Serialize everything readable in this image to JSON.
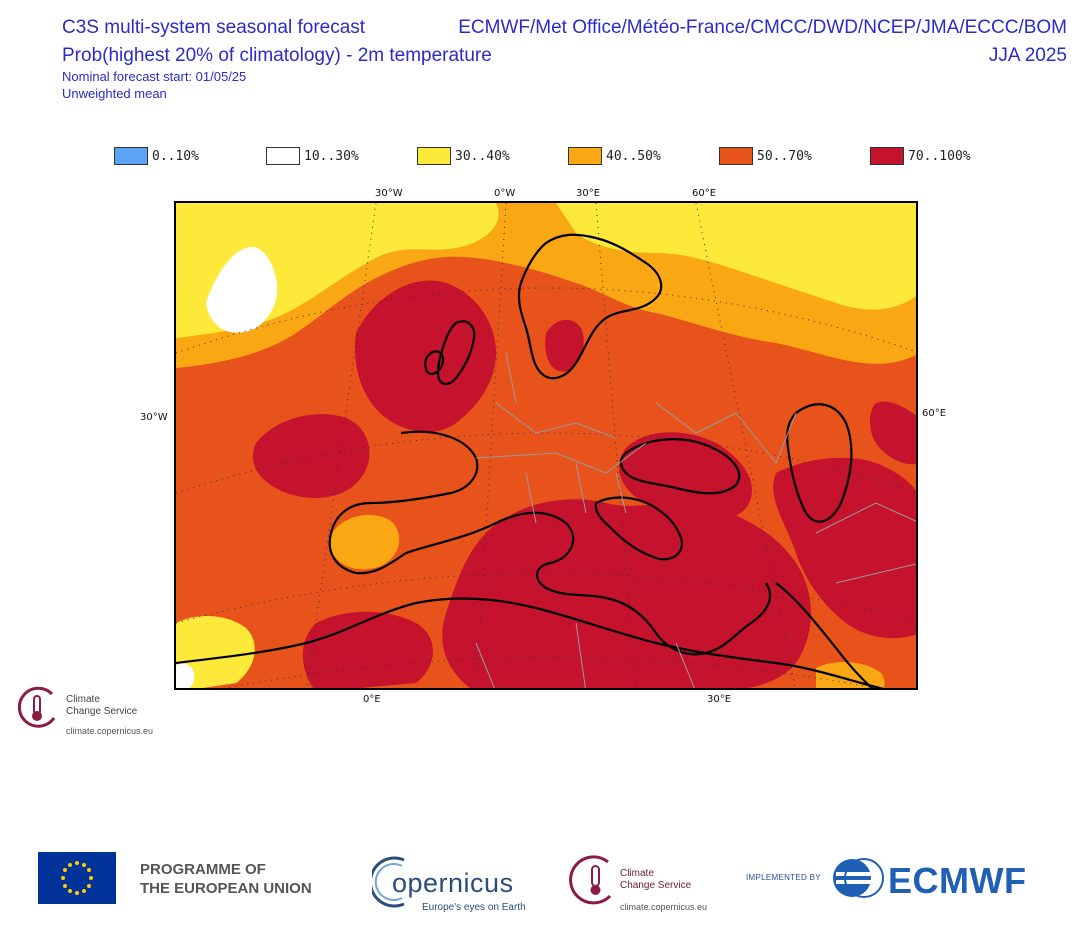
{
  "header": {
    "title_line1": "C3S multi-system seasonal forecast",
    "title_line2": "Prob(highest 20% of climatology) - 2m temperature",
    "forecast_start": "Nominal forecast start: 01/05/25",
    "weighting": "Unweighted mean",
    "models": "ECMWF/Met Office/Météo-France/CMCC/DWD/NCEP/JMA/ECCC/BOM",
    "season": "JJA 2025"
  },
  "legend": [
    {
      "label": "0..10%",
      "color": "#5ba3f5"
    },
    {
      "label": "10..30%",
      "color": "#ffffff"
    },
    {
      "label": "30..40%",
      "color": "#fde93a"
    },
    {
      "label": "40..50%",
      "color": "#f9a814"
    },
    {
      "label": "50..70%",
      "color": "#e8531c"
    },
    {
      "label": "70..100%",
      "color": "#c5122d"
    }
  ],
  "axes": {
    "top": [
      "30°W",
      "0°W",
      "30°E",
      "60°E"
    ],
    "left": "30°W",
    "right": "60°E",
    "bottom": [
      "0°E",
      "30°E"
    ]
  },
  "watermark": {
    "name_line1": "Climate",
    "name_line2": "Change Service",
    "url": "climate.copernicus.eu"
  },
  "footer": {
    "eu_line1": "PROGRAMME OF",
    "eu_line2": "THE EUROPEAN UNION",
    "copernicus": "opernicus",
    "copernicus_tag": "Europe's eyes on Earth",
    "c3s_line1": "Climate",
    "c3s_line2": "Change Service",
    "c3s_url": "climate.copernicus.eu",
    "implemented_by": "IMPLEMENTED BY",
    "ecmwf": "ECMWF"
  }
}
